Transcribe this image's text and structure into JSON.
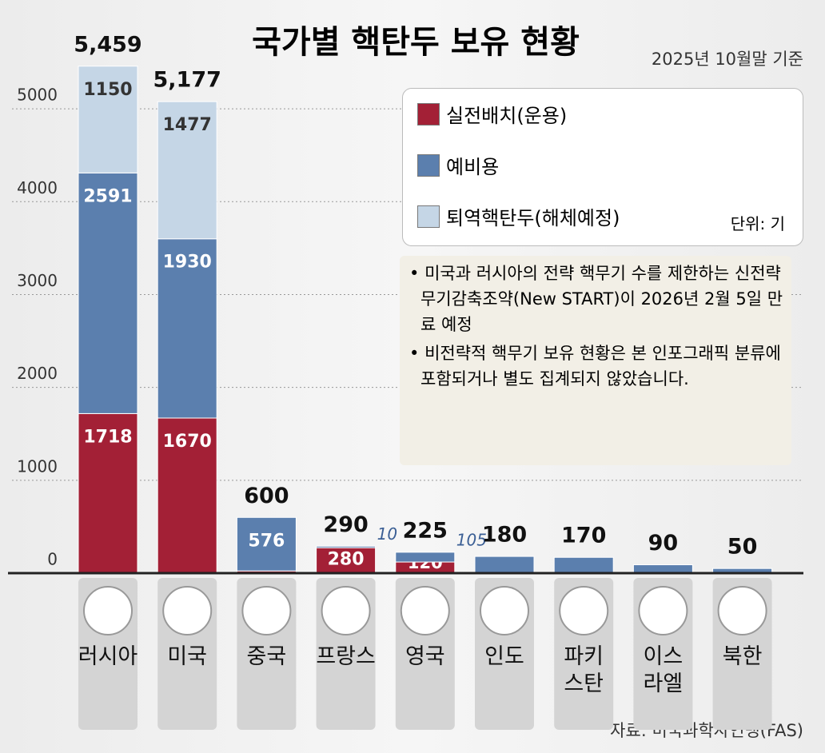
{
  "title": "국가별 핵탄두 보유 현황",
  "subtitle": "2025년 10월말 기준",
  "unit": "단위: 기",
  "notes": [
    "미국과 러시아의 전략 핵무기 수를 제한하는 신전략무기감축조약(New START)이 2026년 2월 5일 만료 예정",
    "비전략적 핵무기 보유 현황은 본 인포그래픽 분류에 포함되거나 별도 집계되지 않았습니다."
  ],
  "source": "자료: 미국과학자연맹(FAS)",
  "chart_data": {
    "type": "bar",
    "stacked": true,
    "categories": [
      "러시아",
      "미국",
      "중국",
      "프랑스",
      "영국",
      "인도",
      "파키\n스탄",
      "이스\n라엘",
      "북한"
    ],
    "series": [
      {
        "name": "실전배치(운용)",
        "color": "#a32036",
        "values": [
          1718,
          1670,
          24,
          280,
          120,
          null,
          null,
          null,
          null
        ]
      },
      {
        "name": "예비용",
        "color": "#5b7fae",
        "values": [
          2591,
          1930,
          576,
          10,
          105,
          180,
          170,
          90,
          50
        ]
      },
      {
        "name": "퇴역핵탄두(해체예정)",
        "color": "#c5d6e6",
        "values": [
          1150,
          1477,
          null,
          null,
          null,
          null,
          null,
          null,
          null
        ]
      }
    ],
    "totals": [
      {
        "value": 5459,
        "label": "5,459"
      },
      {
        "value": 5177,
        "label": "5,177"
      },
      600,
      290,
      225,
      180,
      170,
      90,
      50
    ],
    "ylim": [
      0,
      5500
    ],
    "yticks": [
      0,
      1000,
      2000,
      3000,
      4000,
      5000
    ],
    "grid": true
  }
}
